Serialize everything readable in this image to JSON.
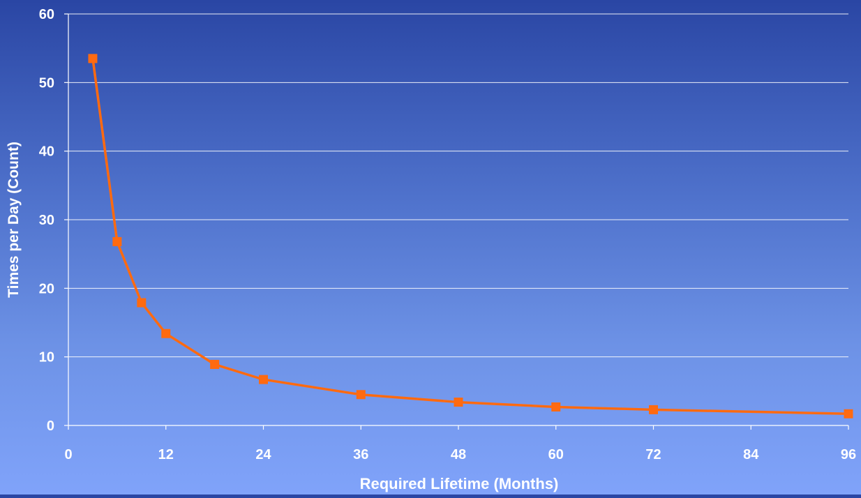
{
  "chart_data": {
    "type": "line",
    "title": "",
    "xlabel": "Required Lifetime (Months)",
    "ylabel": "Times per Day (Count)",
    "xlim": [
      0,
      96
    ],
    "ylim": [
      0,
      60
    ],
    "x_ticks": [
      0,
      12,
      24,
      36,
      48,
      60,
      72,
      84,
      96
    ],
    "y_ticks": [
      0,
      10,
      20,
      30,
      40,
      50,
      60
    ],
    "grid": true,
    "legend": "none",
    "series": [
      {
        "color": "#ff6a10",
        "marker": "square",
        "points": [
          {
            "x": 3,
            "y": 53.5
          },
          {
            "x": 6,
            "y": 26.8
          },
          {
            "x": 9,
            "y": 17.9
          },
          {
            "x": 12,
            "y": 13.4
          },
          {
            "x": 18,
            "y": 8.9
          },
          {
            "x": 24,
            "y": 6.7
          },
          {
            "x": 36,
            "y": 4.5
          },
          {
            "x": 48,
            "y": 3.4
          },
          {
            "x": 60,
            "y": 2.7
          },
          {
            "x": 72,
            "y": 2.3
          },
          {
            "x": 96,
            "y": 1.7
          }
        ]
      }
    ]
  }
}
